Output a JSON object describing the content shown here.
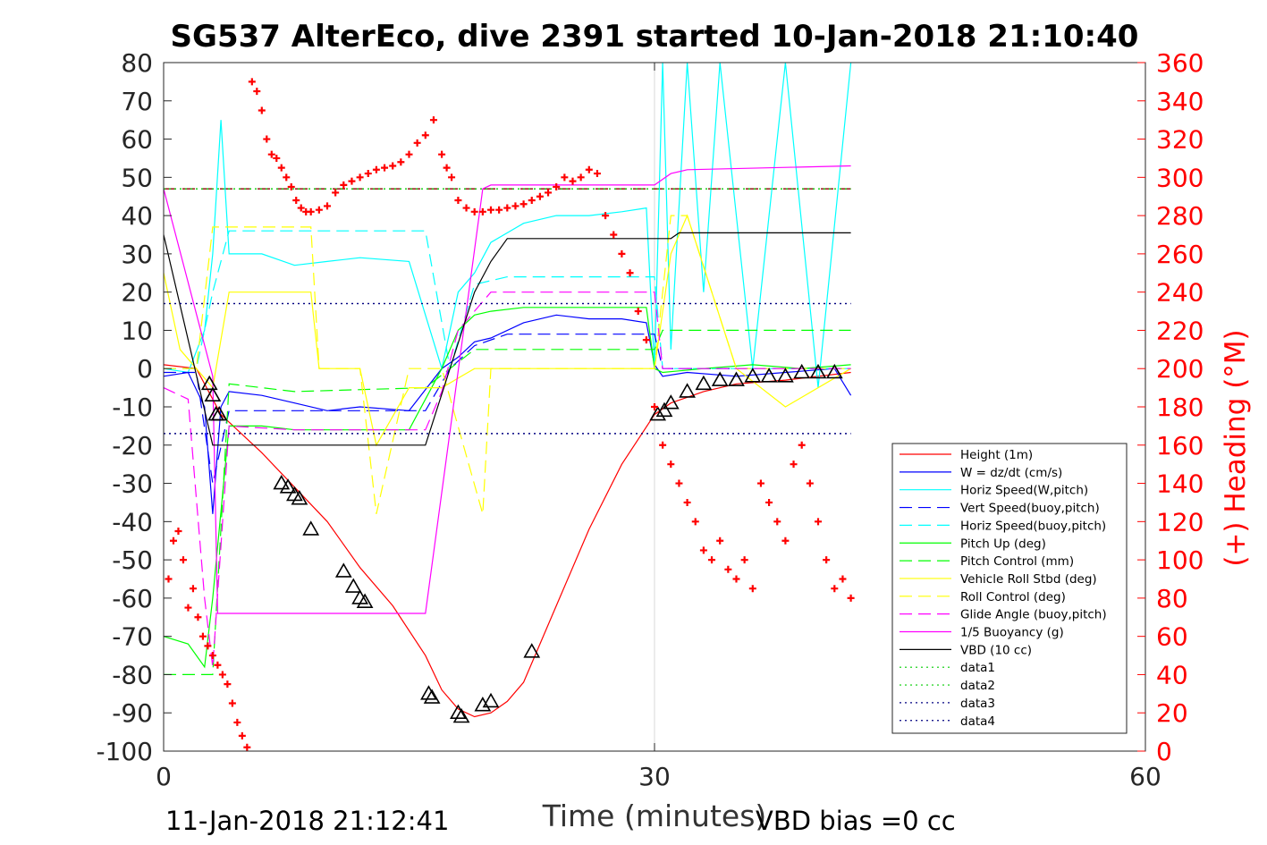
{
  "figure": {
    "title": "SG537 AlterEco, dive 2391 started 10-Jan-2018 21:10:40",
    "footer_left": "11-Jan-2018 21:12:41",
    "footer_right": "VBD bias =0 cc",
    "colors": {
      "red": "#ff0000",
      "blue": "#0000ff",
      "cyan": "#00ffff",
      "green": "#00ff00",
      "yellow": "#ffff00",
      "magenta": "#ff00ff",
      "black": "#000000",
      "darkred": "#8b0000",
      "navy": "#000080",
      "grid": "#d9d9d9"
    }
  },
  "chart_data": {
    "type": "line",
    "title": "SG537 AlterEco, dive 2391 started 10-Jan-2018 21:10:40",
    "xlabel": "Time (minutes)",
    "ylabel_left": "",
    "ylabel_right": "(+) Heading (°M)",
    "xlim": [
      0,
      60
    ],
    "ylim_left": [
      -100,
      80
    ],
    "ylim_right": [
      0,
      360
    ],
    "x_ticks": [
      0,
      30,
      60
    ],
    "y_ticks_left": [
      -100,
      -90,
      -80,
      -70,
      -60,
      -50,
      -40,
      -30,
      -20,
      -10,
      0,
      10,
      20,
      30,
      40,
      50,
      60,
      70,
      80
    ],
    "y_ticks_right": [
      0,
      20,
      40,
      60,
      80,
      100,
      120,
      140,
      160,
      180,
      200,
      220,
      240,
      260,
      280,
      300,
      320,
      340,
      360
    ],
    "grid": "x-only",
    "legend_position": "lower-right",
    "series": [
      {
        "name": "Height (1m)",
        "color": "#ff0000",
        "style": "solid",
        "x": [
          0,
          2,
          3.5,
          6,
          8,
          10,
          12,
          14,
          16,
          17,
          18,
          19,
          20,
          21,
          22,
          24,
          26,
          28,
          30,
          31,
          33,
          35,
          38,
          40,
          42
        ],
        "y": [
          1,
          0,
          -12,
          -22,
          -31,
          -40,
          -52,
          -62,
          -75,
          -84,
          -89,
          -91,
          -90,
          -87,
          -82,
          -62,
          -42,
          -25,
          -12,
          -9,
          -6,
          -4,
          -3,
          -2,
          -1
        ]
      },
      {
        "name": "W = dz/dt (cm/s)",
        "color": "#0000ff",
        "style": "solid",
        "x": [
          0,
          1.5,
          2.5,
          3,
          3.5,
          4,
          6,
          8,
          10,
          12,
          15,
          17,
          18,
          19,
          20,
          22,
          24,
          26,
          28,
          29.5,
          30,
          30.5,
          32,
          35,
          38,
          41,
          42
        ],
        "y": [
          -2,
          -1,
          -10,
          -38,
          -10,
          -6,
          -7,
          -9,
          -11,
          -10,
          -11,
          0,
          3,
          7,
          8,
          12,
          14,
          13,
          13,
          12,
          1,
          -2,
          -1,
          -2,
          -1,
          0,
          -7
        ]
      },
      {
        "name": "Horiz Speed(W,pitch)",
        "color": "#00ffff",
        "style": "solid",
        "x": [
          0,
          1.5,
          2.5,
          3,
          3.5,
          4,
          6,
          8,
          10,
          12,
          15,
          17,
          18,
          19,
          20,
          22,
          24,
          26,
          28,
          29.5,
          30,
          30.5,
          31,
          32,
          33,
          34,
          36,
          38,
          40,
          42
        ],
        "y": [
          0,
          -1,
          10,
          30,
          65,
          30,
          30,
          27,
          28,
          29,
          28,
          0,
          20,
          25,
          33,
          38,
          40,
          40,
          41,
          42,
          0,
          80,
          5,
          80,
          20,
          80,
          0,
          80,
          -5,
          80
        ]
      },
      {
        "name": "Vert Speed(buoy,pitch)",
        "color": "#0000ff",
        "style": "dash",
        "x": [
          0,
          2,
          3,
          4,
          8,
          16,
          17.5,
          19,
          21,
          24,
          30,
          30.5,
          42
        ],
        "y": [
          -1,
          -1,
          -30,
          -11,
          -11,
          -11,
          0,
          6,
          9,
          9,
          9,
          0,
          0
        ]
      },
      {
        "name": "Horiz Speed(buoy,pitch)",
        "color": "#00ffff",
        "style": "dash",
        "x": [
          0,
          2,
          3,
          4,
          8,
          16,
          17.5,
          19,
          21,
          24,
          30,
          30.5,
          42
        ],
        "y": [
          0,
          0,
          20,
          36,
          36,
          36,
          0,
          22,
          24,
          24,
          24,
          0,
          0
        ]
      },
      {
        "name": "Pitch Up (deg)",
        "color": "#00ff00",
        "style": "solid",
        "x": [
          0,
          1.5,
          2.5,
          3,
          4,
          6,
          8,
          10,
          12,
          15,
          17,
          18,
          19,
          20,
          22,
          26,
          29.5,
          30,
          30.5,
          33,
          36,
          39,
          42
        ],
        "y": [
          -70,
          -72,
          -78,
          -60,
          -15,
          -15,
          -16,
          -16,
          -16,
          -16,
          0,
          10,
          14,
          15,
          16,
          16,
          16,
          0,
          -1,
          0,
          1,
          0,
          1
        ]
      },
      {
        "name": "Pitch Control (mm)",
        "color": "#00ff00",
        "style": "dash",
        "x": [
          0,
          2,
          3,
          4,
          8,
          16,
          17.5,
          19,
          22,
          30,
          30.5,
          42
        ],
        "y": [
          -80,
          -80,
          -80,
          -4,
          -6,
          -5,
          0,
          5,
          5,
          5,
          10,
          10
        ]
      },
      {
        "name": "Vehicle Roll Stbd (deg)",
        "color": "#ffff00",
        "style": "solid",
        "x": [
          0,
          1,
          2,
          3,
          4,
          6,
          8,
          9,
          9.5,
          10,
          12,
          13,
          15,
          17,
          19,
          20,
          21,
          25,
          30,
          31,
          32,
          35,
          38,
          42
        ],
        "y": [
          25,
          5,
          0,
          -5,
          20,
          20,
          20,
          20,
          0,
          0,
          0,
          -20,
          -5,
          -5,
          0,
          0,
          0,
          0,
          0,
          30,
          40,
          0,
          -10,
          0
        ]
      },
      {
        "name": "Roll Control (deg)",
        "color": "#ffff00",
        "style": "dash",
        "x": [
          0,
          2,
          3,
          4,
          9,
          9.5,
          12,
          13,
          15,
          17,
          19.5,
          20,
          30,
          31,
          32,
          35,
          42
        ],
        "y": [
          0,
          0,
          37,
          37,
          37,
          0,
          0,
          -38,
          0,
          0,
          -38,
          0,
          0,
          40,
          40,
          0,
          0
        ]
      },
      {
        "name": "Glide Angle (buoy,pitch)",
        "color": "#ff00ff",
        "style": "dash",
        "x": [
          0,
          1.5,
          2.5,
          3,
          4,
          8,
          16,
          17,
          18,
          20,
          24,
          26,
          30,
          30.5,
          35,
          42
        ],
        "y": [
          -5,
          -8,
          -60,
          -78,
          -15,
          -16,
          -16,
          -6,
          10,
          20,
          20,
          20,
          20,
          0,
          0,
          0
        ]
      },
      {
        "name": "1/5 Buoyancy (g)",
        "color": "#ff00ff",
        "style": "solid",
        "x": [
          0,
          3,
          3.3,
          16,
          19.5,
          20,
          22,
          26,
          30,
          31,
          32,
          42
        ],
        "y": [
          47,
          -2,
          -64,
          -64,
          47,
          48,
          48,
          48,
          48,
          51,
          52,
          53
        ]
      },
      {
        "name": "VBD (10 cc)",
        "color": "#000000",
        "style": "solid",
        "x": [
          0,
          3,
          16,
          19,
          20,
          21,
          22,
          31,
          31.5,
          42
        ],
        "y": [
          35,
          -20,
          -20,
          20,
          28,
          34,
          34,
          34,
          35.5,
          35.5
        ]
      },
      {
        "name": "data1",
        "color": "#00cc00",
        "style": "dot",
        "x": [
          0,
          42
        ],
        "y": [
          47,
          47
        ]
      },
      {
        "name": "data2",
        "color": "#00cc00",
        "style": "dot",
        "x": [
          0,
          42
        ],
        "y": [
          47,
          47
        ]
      },
      {
        "name": "data3",
        "color": "#000080",
        "style": "dot",
        "x": [
          0,
          42
        ],
        "y": [
          17,
          17
        ]
      },
      {
        "name": "data4",
        "color": "#000080",
        "style": "dot",
        "x": [
          0,
          42
        ],
        "y": [
          -17,
          -17
        ]
      }
    ],
    "reference_lines": [
      {
        "y": 47,
        "color": "#8b0000",
        "style": "dash"
      },
      {
        "y": 17,
        "color": "#000080",
        "style": "dot"
      },
      {
        "y": -17,
        "color": "#000080",
        "style": "dot"
      }
    ],
    "heading_points": {
      "marker": "+",
      "color": "#ff0000",
      "x": [
        0.3,
        0.6,
        0.9,
        1.2,
        1.5,
        1.8,
        2.1,
        2.4,
        2.7,
        3.0,
        3.3,
        3.6,
        3.9,
        4.2,
        4.5,
        4.8,
        5.1,
        5.4,
        5.7,
        6.0,
        6.3,
        6.6,
        6.9,
        7.2,
        7.5,
        7.8,
        8.1,
        8.4,
        8.7,
        9.0,
        9.5,
        10,
        10.5,
        11,
        11.5,
        12,
        12.5,
        13,
        13.5,
        14,
        14.5,
        15,
        15.5,
        16,
        16.5,
        17,
        17.3,
        17.6,
        18,
        18.5,
        19,
        19.5,
        20,
        20.5,
        21,
        21.5,
        22,
        22.5,
        23,
        23.5,
        24,
        24.5,
        25,
        25.5,
        26,
        26.5,
        27,
        27.5,
        28,
        28.5,
        29,
        29.5,
        30,
        30.5,
        31,
        31.5,
        32,
        32.5,
        33,
        33.5,
        34,
        34.5,
        35,
        35.5,
        36,
        36.5,
        37,
        37.5,
        38,
        38.5,
        39,
        39.5,
        40,
        40.5,
        41,
        41.5,
        42
      ],
      "y": [
        90,
        110,
        115,
        100,
        75,
        85,
        70,
        60,
        55,
        50,
        45,
        40,
        35,
        25,
        15,
        8,
        2,
        350,
        345,
        335,
        320,
        312,
        310,
        305,
        300,
        295,
        288,
        284,
        282,
        282,
        283,
        285,
        292,
        296,
        298,
        300,
        302,
        304,
        305,
        306,
        308,
        312,
        318,
        322,
        330,
        312,
        305,
        300,
        288,
        284,
        282,
        282,
        283,
        283,
        284,
        285,
        286,
        288,
        290,
        292,
        295,
        300,
        298,
        300,
        304,
        302,
        280,
        270,
        260,
        250,
        230,
        215,
        180,
        160,
        150,
        140,
        130,
        120,
        105,
        100,
        110,
        95,
        90,
        100,
        85,
        140,
        130,
        120,
        110,
        150,
        160,
        140,
        120,
        100,
        85,
        90,
        80
      ]
    },
    "triangle_points": {
      "marker": "triangle",
      "color": "#000000",
      "x": [
        2.8,
        3.0,
        3.2,
        3.4,
        7.2,
        7.6,
        8.0,
        8.3,
        9.0,
        11.0,
        11.6,
        12.0,
        12.3,
        16.2,
        16.4,
        18.0,
        18.2,
        19.5,
        20.0,
        22.5,
        30.2,
        30.6,
        31.0,
        32.0,
        33.0,
        34.0,
        35.0,
        36.0,
        37.0,
        38.0,
        39.0,
        40.0,
        41.0
      ],
      "y": [
        -4,
        -7,
        -12,
        -12,
        -30,
        -31,
        -33,
        -34,
        -42,
        -53,
        -57,
        -60,
        -61,
        -85,
        -86,
        -90,
        -91,
        -88,
        -87,
        -74,
        -12,
        -11,
        -9,
        -6,
        -4,
        -3,
        -3,
        -2,
        -2,
        -2,
        -1,
        -1,
        -1
      ]
    }
  }
}
